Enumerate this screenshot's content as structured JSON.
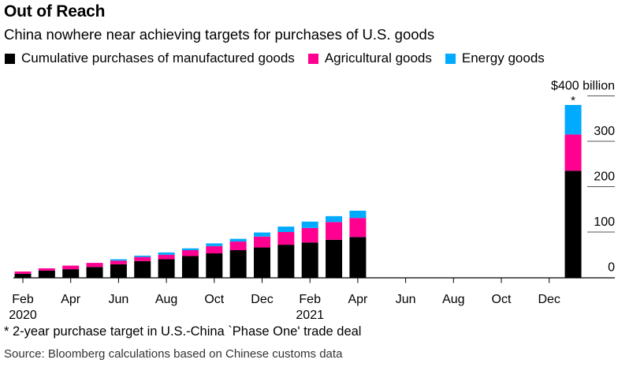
{
  "header": {
    "title": "Out of Reach",
    "subtitle": "China nowhere near achieving targets for purchases of U.S. goods"
  },
  "legend": [
    {
      "label": "Cumulative purchases of manufactured goods",
      "color": "#000000"
    },
    {
      "label": "Agricultural goods",
      "color": "#ff0090"
    },
    {
      "label": "Energy goods",
      "color": "#00aaff"
    }
  ],
  "footnote": "* 2-year purchase target in U.S.-China `Phase One' trade deal",
  "source": "Source: Bloomberg calculations based on Chinese customs data",
  "chart_data": {
    "type": "bar",
    "stacked": true,
    "title": "Out of Reach",
    "subtitle": "China nowhere near achieving targets for purchases of U.S. goods",
    "xlabel": "",
    "ylabel": "$ billion",
    "y_unit_label": "$400 billion",
    "ylim": [
      0,
      400
    ],
    "yticks": [
      0,
      100,
      200,
      300,
      400
    ],
    "ytick_labels": [
      "0",
      "100",
      "200",
      "300",
      "$400 billion"
    ],
    "y_axis_position": "right",
    "grid": true,
    "legend_position": "top-left",
    "x_ticks": [
      {
        "month": 0,
        "label": "Feb",
        "sublabel": "2020"
      },
      {
        "month": 2,
        "label": "Apr",
        "sublabel": ""
      },
      {
        "month": 4,
        "label": "Jun",
        "sublabel": ""
      },
      {
        "month": 6,
        "label": "Aug",
        "sublabel": ""
      },
      {
        "month": 8,
        "label": "Oct",
        "sublabel": ""
      },
      {
        "month": 10,
        "label": "Dec",
        "sublabel": ""
      },
      {
        "month": 12,
        "label": "Feb",
        "sublabel": "2021"
      },
      {
        "month": 14,
        "label": "Apr",
        "sublabel": ""
      },
      {
        "month": 16,
        "label": "Jun",
        "sublabel": ""
      },
      {
        "month": 18,
        "label": "Aug",
        "sublabel": ""
      },
      {
        "month": 20,
        "label": "Oct",
        "sublabel": ""
      },
      {
        "month": 22,
        "label": "Dec",
        "sublabel": ""
      }
    ],
    "categories": [
      "Feb 2020",
      "Mar 2020",
      "Apr 2020",
      "May 2020",
      "Jun 2020",
      "Jul 2020",
      "Aug 2020",
      "Sep 2020",
      "Oct 2020",
      "Nov 2020",
      "Dec 2020",
      "Jan 2021",
      "Feb 2021",
      "Mar 2021",
      "Apr 2021"
    ],
    "series": [
      {
        "name": "Cumulative purchases of manufactured goods",
        "color": "#000000",
        "values": [
          8,
          15,
          18,
          23,
          29,
          36,
          40,
          47,
          53,
          60,
          66,
          72,
          77,
          83,
          89
        ]
      },
      {
        "name": "Agricultural goods",
        "color": "#ff0090",
        "values": [
          5,
          5,
          8,
          9,
          8,
          9,
          10,
          13,
          16,
          19,
          24,
          28,
          32,
          39,
          42
        ]
      },
      {
        "name": "Energy goods",
        "color": "#00aaff",
        "values": [
          0,
          0,
          0,
          0,
          3,
          3,
          5,
          4,
          6,
          6,
          9,
          12,
          14,
          13,
          16
        ]
      }
    ],
    "target": {
      "label": "*",
      "note": "2-year purchase target in U.S.-China `Phase One' trade deal",
      "month": 23,
      "manufactured": 235,
      "agricultural": 80,
      "energy": 65
    }
  }
}
